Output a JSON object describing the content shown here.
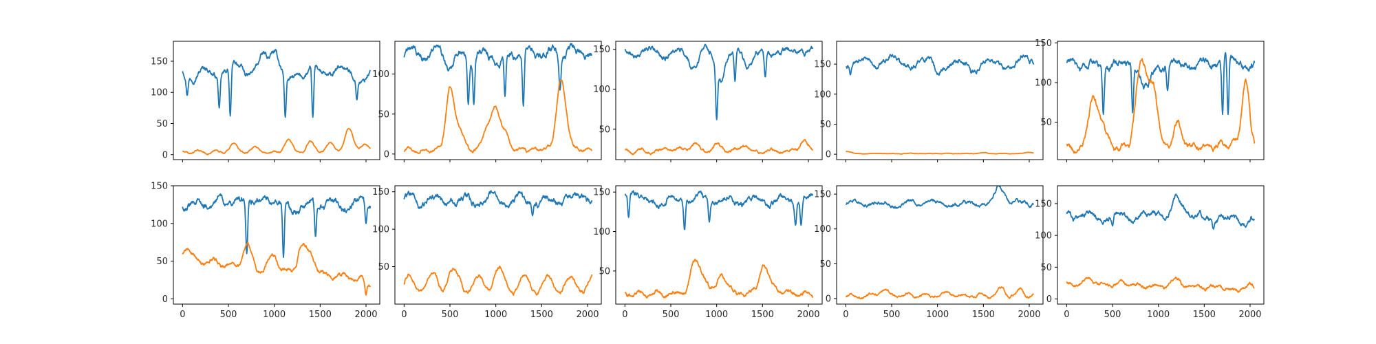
{
  "figure": {
    "background": "#ffffff",
    "axis_color": "#000000",
    "tick_color": "#262626"
  },
  "chart_data": [
    {
      "type": "line",
      "title": "",
      "xlabel": "",
      "ylabel": "",
      "grid": false,
      "legend": "none",
      "xlim": [
        -100,
        2150
      ],
      "ylim": [
        -8,
        182
      ],
      "xticks": [
        0,
        500,
        1000,
        1500,
        2000
      ],
      "yticks": [
        0,
        50,
        100,
        150
      ],
      "show_xtick_labels": false,
      "series": [
        {
          "name": "blue",
          "color": "#1f77b4",
          "base": 132,
          "noise": 5,
          "wave_amp": 8,
          "wave_period": 300,
          "dips": [
            [
              50,
              95
            ],
            [
              400,
              75
            ],
            [
              520,
              62
            ],
            [
              1120,
              60
            ],
            [
              1420,
              60
            ],
            [
              1900,
              88
            ]
          ],
          "bumps": [
            [
              620,
              12
            ],
            [
              890,
              22
            ],
            [
              1000,
              38
            ],
            [
              1160,
              -18
            ],
            [
              1980,
              -15
            ]
          ]
        },
        {
          "name": "orange",
          "color": "#ff7f0e",
          "base": 4,
          "noise": 1.5,
          "wave_amp": 2,
          "wave_period": 200,
          "dips": [],
          "bumps": [
            [
              550,
              12
            ],
            [
              800,
              8
            ],
            [
              1150,
              18
            ],
            [
              1400,
              16
            ],
            [
              1620,
              14
            ],
            [
              1820,
              38
            ],
            [
              2000,
              10
            ]
          ]
        }
      ]
    },
    {
      "type": "line",
      "title": "",
      "xlabel": "",
      "ylabel": "",
      "grid": false,
      "legend": "none",
      "xlim": [
        -100,
        2150
      ],
      "ylim": [
        -7,
        141
      ],
      "xticks": [
        0,
        500,
        1000,
        1500,
        2000
      ],
      "yticks": [
        0,
        50,
        100
      ],
      "show_xtick_labels": false,
      "series": [
        {
          "name": "blue",
          "color": "#1f77b4",
          "base": 126,
          "noise": 5,
          "wave_amp": 6,
          "wave_period": 250,
          "dips": [
            [
              700,
              62
            ],
            [
              760,
              62
            ],
            [
              1100,
              72
            ],
            [
              1300,
              60
            ],
            [
              1700,
              80
            ]
          ],
          "bumps": [
            [
              500,
              -20
            ],
            [
              1050,
              -12
            ]
          ]
        },
        {
          "name": "orange",
          "color": "#ff7f0e",
          "base": 5,
          "noise": 2,
          "wave_amp": 2,
          "wave_period": 150,
          "dips": [],
          "bumps": [
            [
              500,
              75
            ],
            [
              600,
              25
            ],
            [
              900,
              28
            ],
            [
              1000,
              50
            ],
            [
              1100,
              20
            ],
            [
              1700,
              72
            ],
            [
              1760,
              30
            ]
          ]
        }
      ]
    },
    {
      "type": "line",
      "title": "",
      "xlabel": "",
      "ylabel": "",
      "grid": false,
      "legend": "none",
      "xlim": [
        -100,
        2150
      ],
      "ylim": [
        12,
        160
      ],
      "xticks": [
        0,
        500,
        1000,
        1500,
        2000
      ],
      "yticks": [
        50,
        100,
        150
      ],
      "show_xtick_labels": false,
      "series": [
        {
          "name": "blue",
          "color": "#1f77b4",
          "base": 146,
          "noise": 4,
          "wave_amp": 4,
          "wave_period": 300,
          "dips": [
            [
              1000,
              62
            ],
            [
              1200,
              110
            ],
            [
              1530,
              115
            ]
          ],
          "bumps": [
            [
              750,
              -14
            ],
            [
              1050,
              -28
            ],
            [
              1350,
              -15
            ]
          ]
        },
        {
          "name": "orange",
          "color": "#ff7f0e",
          "base": 23,
          "noise": 2,
          "wave_amp": 2,
          "wave_period": 200,
          "dips": [],
          "bumps": [
            [
              750,
              8
            ],
            [
              1000,
              6
            ],
            [
              1300,
              8
            ],
            [
              1950,
              12
            ]
          ]
        }
      ]
    },
    {
      "type": "line",
      "title": "",
      "xlabel": "",
      "ylabel": "",
      "grid": false,
      "legend": "none",
      "xlim": [
        -100,
        2150
      ],
      "ylim": [
        -9,
        188
      ],
      "xticks": [
        0,
        500,
        1000,
        1500,
        2000
      ],
      "yticks": [
        0,
        50,
        100,
        150
      ],
      "show_xtick_labels": false,
      "series": [
        {
          "name": "blue",
          "color": "#1f77b4",
          "base": 152,
          "noise": 5,
          "wave_amp": 6,
          "wave_period": 350,
          "dips": [
            [
              50,
              132
            ]
          ],
          "bumps": [
            [
              500,
              10
            ],
            [
              1000,
              -12
            ],
            [
              1400,
              -10
            ],
            [
              1950,
              8
            ]
          ]
        },
        {
          "name": "orange",
          "color": "#ff7f0e",
          "base": 1,
          "noise": 0.4,
          "wave_amp": 0.3,
          "wave_period": 200,
          "dips": [],
          "bumps": [
            [
              0,
              4
            ],
            [
              1500,
              1.5
            ],
            [
              2000,
              2
            ]
          ]
        }
      ]
    },
    {
      "type": "line",
      "title": "",
      "xlabel": "",
      "ylabel": "",
      "grid": false,
      "legend": "none",
      "xlim": [
        -100,
        2150
      ],
      "ylim": [
        3,
        152
      ],
      "xticks": [
        0,
        500,
        1000,
        1500,
        2000
      ],
      "yticks": [
        50,
        100,
        150
      ],
      "show_xtick_labels": false,
      "series": [
        {
          "name": "blue",
          "color": "#1f77b4",
          "base": 122,
          "noise": 5,
          "wave_amp": 5,
          "wave_period": 300,
          "dips": [
            [
              400,
              60
            ],
            [
              720,
              62
            ],
            [
              1100,
              90
            ],
            [
              1700,
              60
            ],
            [
              1760,
              60
            ]
          ],
          "bumps": [
            [
              850,
              -15
            ],
            [
              900,
              -18
            ],
            [
              1730,
              22
            ]
          ]
        },
        {
          "name": "orange",
          "color": "#ff7f0e",
          "base": 20,
          "noise": 4,
          "wave_amp": 4,
          "wave_period": 150,
          "dips": [],
          "bumps": [
            [
              280,
              58
            ],
            [
              380,
              35
            ],
            [
              780,
              60
            ],
            [
              850,
              80
            ],
            [
              950,
              70
            ],
            [
              1200,
              28
            ],
            [
              1950,
              72
            ]
          ]
        }
      ]
    },
    {
      "type": "line",
      "title": "",
      "xlabel": "",
      "ylabel": "",
      "grid": false,
      "legend": "none",
      "xlim": [
        -100,
        2150
      ],
      "ylim": [
        -7,
        150
      ],
      "xticks": [
        0,
        500,
        1000,
        1500,
        2000
      ],
      "yticks": [
        0,
        50,
        100,
        150
      ],
      "xtick_labels": [
        "0",
        "500",
        "1000",
        "1500",
        "2000"
      ],
      "show_xtick_labels": true,
      "series": [
        {
          "name": "blue",
          "color": "#1f77b4",
          "base": 126,
          "noise": 5,
          "wave_amp": 5,
          "wave_period": 250,
          "dips": [
            [
              700,
              60
            ],
            [
              1100,
              55
            ],
            [
              1450,
              82
            ],
            [
              2000,
              100
            ]
          ],
          "bumps": [
            [
              800,
              10
            ],
            [
              1200,
              -10
            ]
          ]
        },
        {
          "name": "orange",
          "color": "#ff7f0e",
          "base": 52,
          "noise": 3,
          "wave_amp": 4,
          "wave_period": 200,
          "trend_end": 25,
          "dips": [
            [
              2000,
              5
            ]
          ],
          "bumps": [
            [
              50,
              16
            ],
            [
              700,
              28
            ],
            [
              1000,
              20
            ],
            [
              1300,
              35
            ],
            [
              1400,
              25
            ]
          ]
        }
      ]
    },
    {
      "type": "line",
      "title": "",
      "xlabel": "",
      "ylabel": "",
      "grid": false,
      "legend": "none",
      "xlim": [
        -100,
        2150
      ],
      "ylim": [
        0,
        158
      ],
      "xticks": [
        0,
        500,
        1000,
        1500,
        2000
      ],
      "yticks": [
        50,
        100,
        150
      ],
      "xtick_labels": [
        "0",
        "500",
        "1000",
        "1500",
        "2000"
      ],
      "show_xtick_labels": true,
      "series": [
        {
          "name": "blue",
          "color": "#1f77b4",
          "base": 138,
          "noise": 5,
          "wave_amp": 5,
          "wave_period": 300,
          "dips": [
            [
              1400,
              118
            ]
          ],
          "bumps": [
            [
              1950,
              8
            ]
          ]
        },
        {
          "name": "orange",
          "color": "#ff7f0e",
          "base": 26,
          "noise": 3,
          "wave_amp": 12,
          "wave_period": 250,
          "dips": [],
          "bumps": [
            [
              500,
              15
            ],
            [
              1000,
              18
            ]
          ]
        }
      ]
    },
    {
      "type": "line",
      "title": "",
      "xlabel": "",
      "ylabel": "",
      "grid": false,
      "legend": "none",
      "xlim": [
        -100,
        2150
      ],
      "ylim": [
        8,
        158
      ],
      "xticks": [
        0,
        500,
        1000,
        1500,
        2000
      ],
      "yticks": [
        50,
        100,
        150
      ],
      "xtick_labels": [
        "0",
        "500",
        "1000",
        "1500",
        "2000"
      ],
      "show_xtick_labels": true,
      "series": [
        {
          "name": "blue",
          "color": "#1f77b4",
          "base": 140,
          "noise": 4,
          "wave_amp": 5,
          "wave_period": 300,
          "dips": [
            [
              40,
              118
            ],
            [
              650,
              102
            ],
            [
              920,
              112
            ],
            [
              1860,
              108
            ],
            [
              1920,
              108
            ]
          ],
          "bumps": [
            [
              50,
              10
            ],
            [
              100,
              10
            ]
          ]
        },
        {
          "name": "orange",
          "color": "#ff7f0e",
          "base": 22,
          "noise": 3,
          "wave_amp": 3,
          "wave_period": 200,
          "dips": [],
          "bumps": [
            [
              750,
              35
            ],
            [
              850,
              25
            ],
            [
              1050,
              25
            ],
            [
              1500,
              35
            ],
            [
              1600,
              12
            ]
          ]
        }
      ]
    },
    {
      "type": "line",
      "title": "",
      "xlabel": "",
      "ylabel": "",
      "grid": false,
      "legend": "none",
      "xlim": [
        -100,
        2150
      ],
      "ylim": [
        -8,
        162
      ],
      "xticks": [
        0,
        500,
        1000,
        1500,
        2000
      ],
      "yticks": [
        0,
        50,
        100,
        150
      ],
      "xtick_labels": [
        "0",
        "500",
        "1000",
        "1500",
        "2000"
      ],
      "show_xtick_labels": true,
      "series": [
        {
          "name": "blue",
          "color": "#1f77b4",
          "base": 136,
          "noise": 3,
          "wave_amp": 3,
          "wave_period": 300,
          "dips": [],
          "bumps": [
            [
              1700,
              18
            ],
            [
              1650,
              12
            ]
          ]
        },
        {
          "name": "orange",
          "color": "#ff7f0e",
          "base": 4,
          "noise": 2,
          "wave_amp": 2,
          "wave_period": 200,
          "dips": [],
          "bumps": [
            [
              400,
              6
            ],
            [
              1100,
              5
            ],
            [
              1700,
              10
            ],
            [
              1900,
              10
            ]
          ]
        }
      ]
    },
    {
      "type": "line",
      "title": "",
      "xlabel": "",
      "ylabel": "",
      "grid": false,
      "legend": "none",
      "xlim": [
        -100,
        2150
      ],
      "ylim": [
        -8,
        178
      ],
      "xticks": [
        0,
        500,
        1000,
        1500,
        2000
      ],
      "yticks": [
        0,
        50,
        100,
        150
      ],
      "xtick_labels": [
        "0",
        "500",
        "1000",
        "1500",
        "2000"
      ],
      "show_xtick_labels": true,
      "series": [
        {
          "name": "blue",
          "color": "#1f77b4",
          "base": 132,
          "noise": 5,
          "wave_amp": 5,
          "wave_period": 300,
          "trend_end": 125,
          "dips": [
            [
              500,
              115
            ],
            [
              1600,
              110
            ]
          ],
          "bumps": [
            [
              1000,
              10
            ],
            [
              1200,
              32
            ],
            [
              1300,
              15
            ]
          ]
        },
        {
          "name": "orange",
          "color": "#ff7f0e",
          "base": 25,
          "noise": 3,
          "wave_amp": 2,
          "wave_period": 200,
          "trend_end": 15,
          "dips": [],
          "bumps": [
            [
              250,
              8
            ],
            [
              1200,
              12
            ],
            [
              2000,
              5
            ]
          ]
        }
      ]
    }
  ]
}
